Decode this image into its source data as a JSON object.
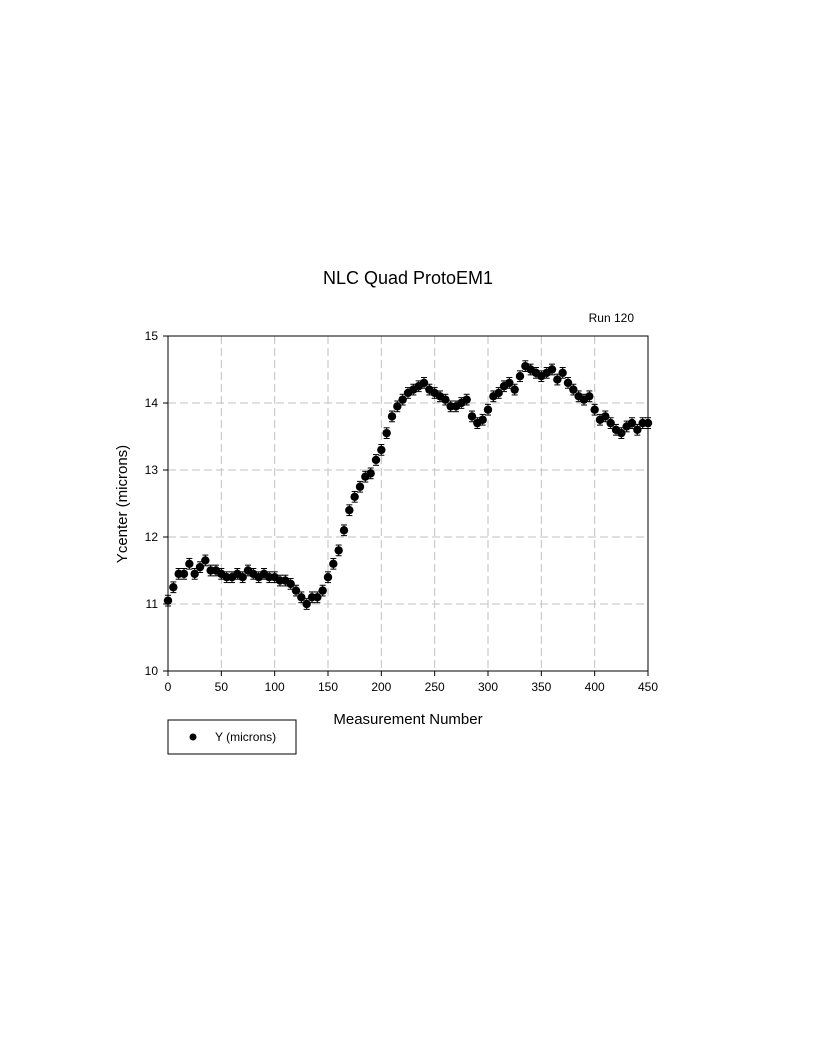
{
  "chart_data": {
    "type": "scatter",
    "title": "NLC Quad ProtoEM1",
    "annotation": "Run 120",
    "xlabel": "Measurement Number",
    "ylabel": "Ycenter (microns)",
    "xlim": [
      0,
      450
    ],
    "ylim": [
      10,
      15
    ],
    "xticks": [
      0,
      50,
      100,
      150,
      200,
      250,
      300,
      350,
      400,
      450
    ],
    "yticks": [
      10,
      11,
      12,
      13,
      14,
      15
    ],
    "xtick_labels": [
      "0",
      "50",
      "100",
      "150",
      "200",
      "250",
      "300",
      "350",
      "400",
      "450"
    ],
    "ytick_labels": [
      "10",
      "11",
      "12",
      "13",
      "14",
      "15"
    ],
    "grid": true,
    "legend": {
      "placement": "bottom-left",
      "entries": [
        "Y (microns)"
      ]
    },
    "marker_color": "#000000",
    "series": [
      {
        "name": "Y (microns)",
        "error_bar": 0.08,
        "x": [
          0,
          5,
          10,
          15,
          20,
          25,
          30,
          35,
          40,
          45,
          50,
          55,
          60,
          65,
          70,
          75,
          80,
          85,
          90,
          95,
          100,
          105,
          110,
          115,
          120,
          125,
          130,
          135,
          140,
          145,
          150,
          155,
          160,
          165,
          170,
          175,
          180,
          185,
          190,
          195,
          200,
          205,
          210,
          215,
          220,
          225,
          230,
          235,
          240,
          245,
          250,
          255,
          260,
          265,
          270,
          275,
          280,
          285,
          290,
          295,
          300,
          305,
          310,
          315,
          320,
          325,
          330,
          335,
          340,
          345,
          350,
          355,
          360,
          365,
          370,
          375,
          380,
          385,
          390,
          395,
          400,
          405,
          410,
          415,
          420,
          425,
          430,
          435,
          440,
          445,
          450
        ],
        "y": [
          11.05,
          11.25,
          11.45,
          11.45,
          11.6,
          11.45,
          11.55,
          11.65,
          11.5,
          11.5,
          11.45,
          11.4,
          11.4,
          11.45,
          11.4,
          11.5,
          11.45,
          11.4,
          11.45,
          11.4,
          11.4,
          11.35,
          11.35,
          11.3,
          11.2,
          11.1,
          11.0,
          11.1,
          11.1,
          11.2,
          11.4,
          11.6,
          11.8,
          12.1,
          12.4,
          12.6,
          12.75,
          12.9,
          12.95,
          13.15,
          13.3,
          13.55,
          13.8,
          13.95,
          14.05,
          14.15,
          14.2,
          14.25,
          14.3,
          14.2,
          14.15,
          14.1,
          14.05,
          13.95,
          13.95,
          14.0,
          14.05,
          13.8,
          13.7,
          13.75,
          13.9,
          14.1,
          14.15,
          14.25,
          14.3,
          14.2,
          14.4,
          14.55,
          14.5,
          14.45,
          14.4,
          14.45,
          14.5,
          14.35,
          14.45,
          14.3,
          14.2,
          14.1,
          14.05,
          14.1,
          13.9,
          13.75,
          13.8,
          13.7,
          13.6,
          13.55,
          13.65,
          13.7,
          13.6,
          13.7,
          13.7
        ]
      }
    ]
  }
}
